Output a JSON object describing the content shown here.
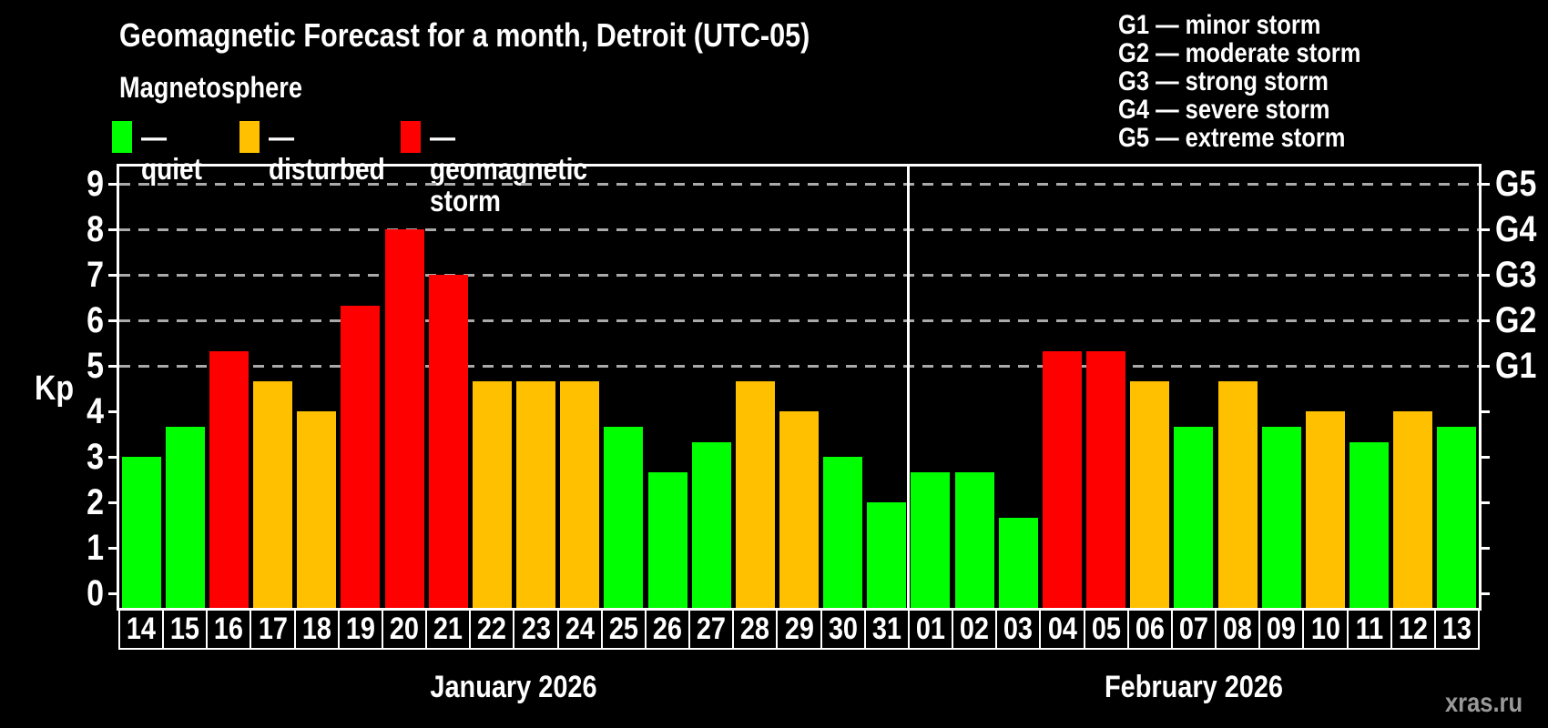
{
  "header": {
    "title": "Geomagnetic Forecast for a month, Detroit (UTC-05)",
    "subtitle": "Magnetosphere"
  },
  "legend": {
    "items": [
      {
        "label": "— quiet",
        "status": "quiet"
      },
      {
        "label": "— disturbed",
        "status": "disturbed"
      },
      {
        "label": "— geomagnetic storm",
        "status": "storm"
      }
    ]
  },
  "g_legend": {
    "items": [
      "G1 — minor storm",
      "G2 — moderate storm",
      "G3 — strong storm",
      "G4 — severe storm",
      "G5 — extreme storm"
    ]
  },
  "watermark": "xras.ru",
  "colors": {
    "quiet": "#00ff00",
    "disturbed": "#ffc000",
    "storm": "#ff0000",
    "grid": "#aaaaaa",
    "frame": "#ffffff",
    "watermark_gray": "#999999"
  },
  "chart_data": {
    "type": "bar",
    "title": "Geomagnetic Forecast for a month, Detroit (UTC-05)",
    "ylabel": "Kp",
    "ylim": [
      0,
      9.4
    ],
    "yticks": [
      0,
      1,
      2,
      3,
      4,
      5,
      6,
      7,
      8,
      9
    ],
    "grid": "horizontal dashed lines at Kp 5,6,7,8,9",
    "legend_position": "top",
    "right_axis": [
      {
        "kp": 5,
        "label": "G1"
      },
      {
        "kp": 6,
        "label": "G2"
      },
      {
        "kp": 7,
        "label": "G3"
      },
      {
        "kp": 8,
        "label": "G4"
      },
      {
        "kp": 9,
        "label": "G5"
      }
    ],
    "months": [
      {
        "label": "January 2026",
        "days": [
          {
            "day": "14",
            "kp": 3.0,
            "status": "quiet"
          },
          {
            "day": "15",
            "kp": 3.67,
            "status": "quiet"
          },
          {
            "day": "16",
            "kp": 5.33,
            "status": "storm"
          },
          {
            "day": "17",
            "kp": 4.67,
            "status": "disturbed"
          },
          {
            "day": "18",
            "kp": 4.0,
            "status": "disturbed"
          },
          {
            "day": "19",
            "kp": 6.33,
            "status": "storm"
          },
          {
            "day": "20",
            "kp": 8.0,
            "status": "storm"
          },
          {
            "day": "21",
            "kp": 7.0,
            "status": "storm"
          },
          {
            "day": "22",
            "kp": 4.67,
            "status": "disturbed"
          },
          {
            "day": "23",
            "kp": 4.67,
            "status": "disturbed"
          },
          {
            "day": "24",
            "kp": 4.67,
            "status": "disturbed"
          },
          {
            "day": "25",
            "kp": 3.67,
            "status": "quiet"
          },
          {
            "day": "26",
            "kp": 2.67,
            "status": "quiet"
          },
          {
            "day": "27",
            "kp": 3.33,
            "status": "quiet"
          },
          {
            "day": "28",
            "kp": 4.67,
            "status": "disturbed"
          },
          {
            "day": "29",
            "kp": 4.0,
            "status": "disturbed"
          },
          {
            "day": "30",
            "kp": 3.0,
            "status": "quiet"
          },
          {
            "day": "31",
            "kp": 2.0,
            "status": "quiet"
          }
        ]
      },
      {
        "label": "February 2026",
        "days": [
          {
            "day": "01",
            "kp": 2.67,
            "status": "quiet"
          },
          {
            "day": "02",
            "kp": 2.67,
            "status": "quiet"
          },
          {
            "day": "03",
            "kp": 1.67,
            "status": "quiet"
          },
          {
            "day": "04",
            "kp": 5.33,
            "status": "storm"
          },
          {
            "day": "05",
            "kp": 5.33,
            "status": "storm"
          },
          {
            "day": "06",
            "kp": 4.67,
            "status": "disturbed"
          },
          {
            "day": "07",
            "kp": 3.67,
            "status": "quiet"
          },
          {
            "day": "08",
            "kp": 4.67,
            "status": "disturbed"
          },
          {
            "day": "09",
            "kp": 3.67,
            "status": "quiet"
          },
          {
            "day": "10",
            "kp": 4.0,
            "status": "disturbed"
          },
          {
            "day": "11",
            "kp": 3.33,
            "status": "quiet"
          },
          {
            "day": "12",
            "kp": 4.0,
            "status": "disturbed"
          },
          {
            "day": "13",
            "kp": 3.67,
            "status": "quiet"
          }
        ]
      }
    ]
  }
}
